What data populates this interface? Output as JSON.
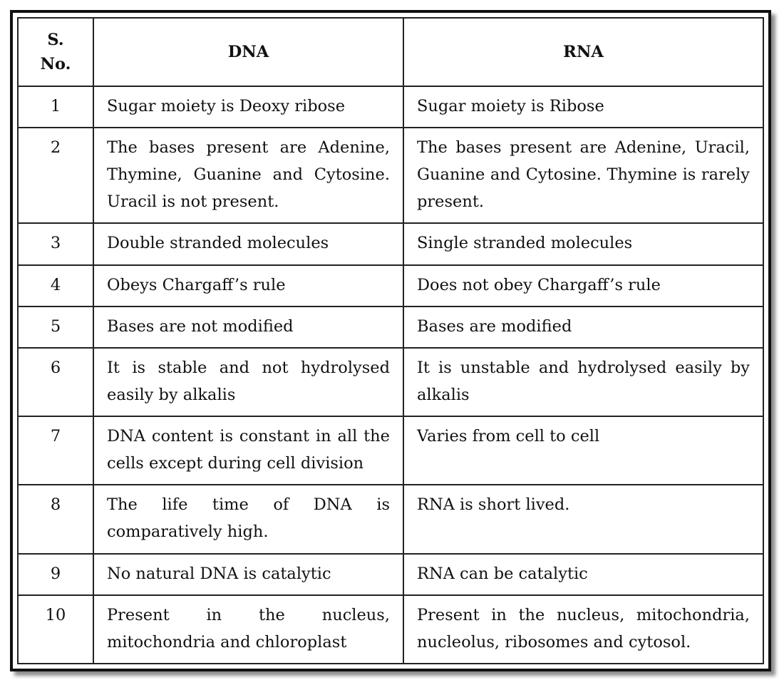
{
  "table": {
    "headers": {
      "sno_line1": "S.",
      "sno_line2": "No.",
      "dna": "DNA",
      "rna": "RNA"
    },
    "rows": [
      {
        "no": "1",
        "dna": "Sugar moiety is Deoxy ribose",
        "rna": "Sugar moiety is Ribose"
      },
      {
        "no": "2",
        "dna": "The bases present are Adenine, Thymine, Guanine and Cytosine. Uracil is not present.",
        "rna": "The bases present are Adenine, Uracil, Guanine and Cytosine. Thymine is rarely present."
      },
      {
        "no": "3",
        "dna": "Double stranded molecules",
        "rna": "Single stranded molecules"
      },
      {
        "no": "4",
        "dna": "Obeys Chargaff’s rule",
        "rna": "Does not obey Chargaff’s rule"
      },
      {
        "no": "5",
        "dna": "Bases are not modified",
        "rna": "Bases are modified"
      },
      {
        "no": "6",
        "dna": "It is stable and not hydrolysed easily by alkalis",
        "rna": "It is unstable and hydrolysed easily by alkalis"
      },
      {
        "no": "7",
        "dna": "DNA content is constant in all the cells except during cell division",
        "rna": "Varies from cell to cell"
      },
      {
        "no": "8",
        "dna": "The life time of DNA is comparatively high.",
        "rna": "RNA is short lived."
      },
      {
        "no": "9",
        "dna": "No natural DNA is catalytic",
        "rna": "RNA can be catalytic"
      },
      {
        "no": "10",
        "dna": "Present in the nucleus, mitochondria and chloroplast",
        "rna": "Present in the nucleus, mitochondria, nucleolus, ribosomes and cytosol."
      }
    ]
  }
}
